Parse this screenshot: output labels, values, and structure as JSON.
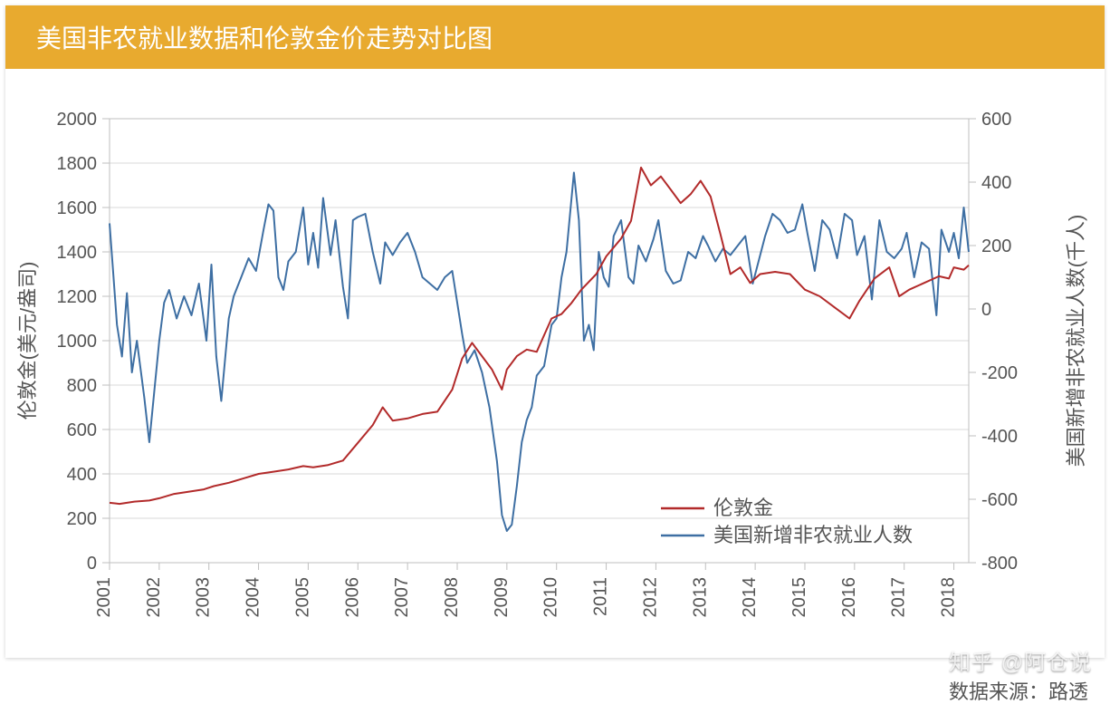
{
  "title": "美国非农就业数据和伦敦金价走势对比图",
  "title_bar_color": "#E8AA2F",
  "title_text_color": "#FFFFFF",
  "title_fontsize": 28,
  "source_label": "数据来源：路透",
  "watermark": "知乎 @阿仓说",
  "chart": {
    "type": "dual-axis-line",
    "background_color": "#FFFFFF",
    "plot_border_color": "#BFBFBF",
    "grid_color": "#D9D9D9",
    "axis_text_color": "#555555",
    "axis_fontsize": 20,
    "label_fontsize": 22,
    "line_width": 2,
    "x": {
      "start_year": 2001,
      "end_year": 2018.3,
      "tick_years": [
        2001,
        2002,
        2003,
        2004,
        2005,
        2006,
        2007,
        2008,
        2009,
        2010,
        2011,
        2012,
        2013,
        2014,
        2015,
        2016,
        2017,
        2018
      ]
    },
    "y_left": {
      "title": "伦敦金(美元/盎司)",
      "min": 0,
      "max": 2000,
      "step": 200,
      "color": "#B22A2A"
    },
    "y_right": {
      "title": "美国新增非农就业人数(千人)",
      "min": -800,
      "max": 600,
      "step": 200,
      "color": "#3E6FA3"
    },
    "legend": {
      "position": "inside-bottom-right",
      "items": [
        {
          "label": "伦敦金",
          "color": "#B22A2A"
        },
        {
          "label": "美国新增非农就业人数",
          "color": "#3E6FA3"
        }
      ]
    },
    "series": {
      "gold": {
        "axis": "left",
        "color": "#B22A2A",
        "data": [
          [
            2001.0,
            270
          ],
          [
            2001.2,
            265
          ],
          [
            2001.5,
            275
          ],
          [
            2001.8,
            280
          ],
          [
            2002.0,
            290
          ],
          [
            2002.3,
            310
          ],
          [
            2002.6,
            320
          ],
          [
            2002.9,
            330
          ],
          [
            2003.1,
            345
          ],
          [
            2003.4,
            360
          ],
          [
            2003.7,
            380
          ],
          [
            2004.0,
            400
          ],
          [
            2004.3,
            410
          ],
          [
            2004.6,
            420
          ],
          [
            2004.9,
            435
          ],
          [
            2005.1,
            430
          ],
          [
            2005.4,
            440
          ],
          [
            2005.7,
            460
          ],
          [
            2006.0,
            540
          ],
          [
            2006.3,
            620
          ],
          [
            2006.5,
            700
          ],
          [
            2006.7,
            640
          ],
          [
            2007.0,
            650
          ],
          [
            2007.3,
            670
          ],
          [
            2007.6,
            680
          ],
          [
            2007.9,
            780
          ],
          [
            2008.1,
            920
          ],
          [
            2008.3,
            990
          ],
          [
            2008.5,
            930
          ],
          [
            2008.7,
            870
          ],
          [
            2008.9,
            780
          ],
          [
            2009.0,
            870
          ],
          [
            2009.2,
            930
          ],
          [
            2009.4,
            960
          ],
          [
            2009.6,
            950
          ],
          [
            2009.9,
            1100
          ],
          [
            2010.1,
            1120
          ],
          [
            2010.3,
            1170
          ],
          [
            2010.5,
            1230
          ],
          [
            2010.8,
            1300
          ],
          [
            2011.0,
            1380
          ],
          [
            2011.3,
            1460
          ],
          [
            2011.5,
            1540
          ],
          [
            2011.7,
            1780
          ],
          [
            2011.9,
            1700
          ],
          [
            2012.1,
            1740
          ],
          [
            2012.3,
            1680
          ],
          [
            2012.5,
            1620
          ],
          [
            2012.7,
            1660
          ],
          [
            2012.9,
            1720
          ],
          [
            2013.1,
            1650
          ],
          [
            2013.3,
            1480
          ],
          [
            2013.5,
            1300
          ],
          [
            2013.7,
            1330
          ],
          [
            2013.9,
            1260
          ],
          [
            2014.1,
            1300
          ],
          [
            2014.4,
            1310
          ],
          [
            2014.7,
            1300
          ],
          [
            2015.0,
            1230
          ],
          [
            2015.3,
            1200
          ],
          [
            2015.6,
            1150
          ],
          [
            2015.9,
            1100
          ],
          [
            2016.1,
            1180
          ],
          [
            2016.4,
            1280
          ],
          [
            2016.7,
            1330
          ],
          [
            2016.9,
            1200
          ],
          [
            2017.1,
            1230
          ],
          [
            2017.4,
            1260
          ],
          [
            2017.7,
            1290
          ],
          [
            2017.9,
            1280
          ],
          [
            2018.0,
            1330
          ],
          [
            2018.2,
            1320
          ],
          [
            2018.3,
            1340
          ]
        ]
      },
      "nfp": {
        "axis": "right",
        "color": "#3E6FA3",
        "data": [
          [
            2001.0,
            270
          ],
          [
            2001.08,
            100
          ],
          [
            2001.15,
            -50
          ],
          [
            2001.25,
            -150
          ],
          [
            2001.35,
            50
          ],
          [
            2001.45,
            -200
          ],
          [
            2001.55,
            -100
          ],
          [
            2001.7,
            -280
          ],
          [
            2001.8,
            -420
          ],
          [
            2001.9,
            -260
          ],
          [
            2002.0,
            -100
          ],
          [
            2002.1,
            20
          ],
          [
            2002.2,
            60
          ],
          [
            2002.35,
            -30
          ],
          [
            2002.5,
            40
          ],
          [
            2002.65,
            -20
          ],
          [
            2002.8,
            80
          ],
          [
            2002.95,
            -100
          ],
          [
            2003.05,
            140
          ],
          [
            2003.15,
            -150
          ],
          [
            2003.25,
            -290
          ],
          [
            2003.4,
            -30
          ],
          [
            2003.5,
            40
          ],
          [
            2003.65,
            100
          ],
          [
            2003.8,
            160
          ],
          [
            2003.95,
            120
          ],
          [
            2004.1,
            250
          ],
          [
            2004.2,
            330
          ],
          [
            2004.3,
            310
          ],
          [
            2004.4,
            100
          ],
          [
            2004.5,
            60
          ],
          [
            2004.6,
            150
          ],
          [
            2004.75,
            180
          ],
          [
            2004.9,
            320
          ],
          [
            2005.0,
            140
          ],
          [
            2005.1,
            240
          ],
          [
            2005.2,
            130
          ],
          [
            2005.3,
            350
          ],
          [
            2005.45,
            170
          ],
          [
            2005.55,
            280
          ],
          [
            2005.7,
            70
          ],
          [
            2005.8,
            -30
          ],
          [
            2005.9,
            280
          ],
          [
            2006.0,
            290
          ],
          [
            2006.15,
            300
          ],
          [
            2006.3,
            180
          ],
          [
            2006.45,
            80
          ],
          [
            2006.55,
            210
          ],
          [
            2006.7,
            170
          ],
          [
            2006.85,
            210
          ],
          [
            2007.0,
            240
          ],
          [
            2007.15,
            180
          ],
          [
            2007.3,
            100
          ],
          [
            2007.45,
            80
          ],
          [
            2007.6,
            60
          ],
          [
            2007.75,
            100
          ],
          [
            2007.9,
            120
          ],
          [
            2008.0,
            20
          ],
          [
            2008.1,
            -80
          ],
          [
            2008.2,
            -170
          ],
          [
            2008.35,
            -130
          ],
          [
            2008.5,
            -200
          ],
          [
            2008.65,
            -310
          ],
          [
            2008.8,
            -480
          ],
          [
            2008.9,
            -650
          ],
          [
            2009.0,
            -700
          ],
          [
            2009.1,
            -680
          ],
          [
            2009.2,
            -560
          ],
          [
            2009.3,
            -420
          ],
          [
            2009.4,
            -350
          ],
          [
            2009.5,
            -310
          ],
          [
            2009.6,
            -210
          ],
          [
            2009.75,
            -180
          ],
          [
            2009.9,
            -50
          ],
          [
            2010.0,
            -30
          ],
          [
            2010.1,
            100
          ],
          [
            2010.2,
            180
          ],
          [
            2010.35,
            430
          ],
          [
            2010.45,
            280
          ],
          [
            2010.55,
            -100
          ],
          [
            2010.65,
            -50
          ],
          [
            2010.75,
            -130
          ],
          [
            2010.85,
            180
          ],
          [
            2010.95,
            100
          ],
          [
            2011.05,
            70
          ],
          [
            2011.15,
            230
          ],
          [
            2011.3,
            280
          ],
          [
            2011.45,
            100
          ],
          [
            2011.55,
            80
          ],
          [
            2011.65,
            200
          ],
          [
            2011.8,
            150
          ],
          [
            2011.95,
            220
          ],
          [
            2012.05,
            280
          ],
          [
            2012.2,
            120
          ],
          [
            2012.35,
            80
          ],
          [
            2012.5,
            90
          ],
          [
            2012.65,
            180
          ],
          [
            2012.8,
            160
          ],
          [
            2012.95,
            230
          ],
          [
            2013.05,
            200
          ],
          [
            2013.2,
            150
          ],
          [
            2013.35,
            190
          ],
          [
            2013.5,
            170
          ],
          [
            2013.65,
            200
          ],
          [
            2013.8,
            230
          ],
          [
            2013.95,
            80
          ],
          [
            2014.05,
            140
          ],
          [
            2014.2,
            230
          ],
          [
            2014.35,
            300
          ],
          [
            2014.5,
            280
          ],
          [
            2014.65,
            240
          ],
          [
            2014.8,
            250
          ],
          [
            2014.95,
            330
          ],
          [
            2015.05,
            240
          ],
          [
            2015.2,
            120
          ],
          [
            2015.35,
            280
          ],
          [
            2015.5,
            250
          ],
          [
            2015.65,
            160
          ],
          [
            2015.8,
            300
          ],
          [
            2015.95,
            280
          ],
          [
            2016.05,
            170
          ],
          [
            2016.2,
            230
          ],
          [
            2016.35,
            30
          ],
          [
            2016.5,
            280
          ],
          [
            2016.65,
            180
          ],
          [
            2016.8,
            160
          ],
          [
            2016.95,
            190
          ],
          [
            2017.05,
            240
          ],
          [
            2017.2,
            100
          ],
          [
            2017.35,
            210
          ],
          [
            2017.5,
            190
          ],
          [
            2017.65,
            -20
          ],
          [
            2017.75,
            250
          ],
          [
            2017.9,
            180
          ],
          [
            2018.0,
            240
          ],
          [
            2018.1,
            160
          ],
          [
            2018.2,
            320
          ],
          [
            2018.3,
            180
          ]
        ]
      }
    }
  }
}
